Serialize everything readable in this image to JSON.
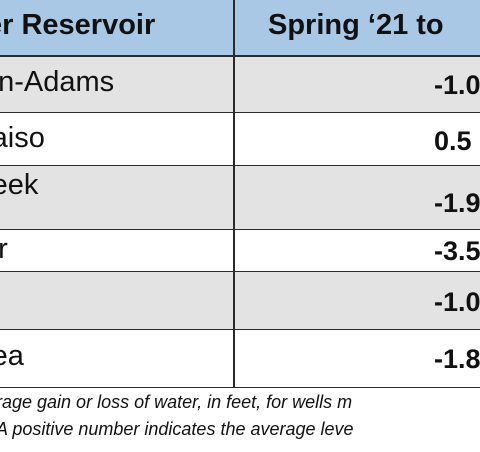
{
  "header": {
    "col1": "er Reservoir",
    "col2": "Spring ‘21  to"
  },
  "rows": [
    {
      "name": "on-Adams",
      "value": "-1.0"
    },
    {
      "name": "raiso",
      "value": "0.5"
    },
    {
      "name": "reek",
      "value": "-1.9"
    },
    {
      "name": "er",
      "value": "-3.5"
    },
    {
      "name": "",
      "value": "-1.0"
    },
    {
      "name": "rea",
      "value": "-1.8"
    }
  ],
  "footnote": {
    "line1": "rage gain or loss of water, in feet, for wells m",
    "line2": "A positive number indicates the average leve"
  },
  "colors": {
    "header_bg": "#a9c8e6",
    "shaded_row": "#e3e3e3",
    "rule": "#2b2b2b"
  }
}
